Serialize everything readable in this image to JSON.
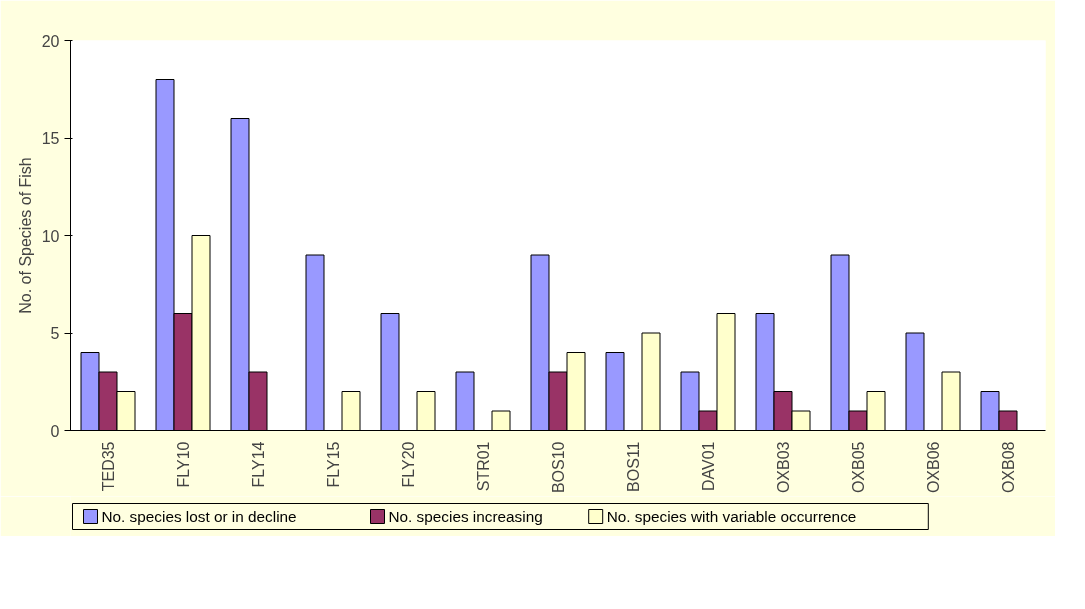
{
  "chart_data": {
    "type": "bar",
    "ylabel": "No. of Species of Fish",
    "categories": [
      "TED35",
      "FLY10",
      "FLY14",
      "FLY15",
      "FLY20",
      "STR01",
      "BOS10",
      "BOS11",
      "DAV01",
      "OXB03",
      "OXB05",
      "OXB06",
      "OXB08"
    ],
    "series": [
      {
        "name": "No. species lost or in decline",
        "color": "#9999ff",
        "values": [
          4,
          18,
          16,
          9,
          6,
          3,
          9,
          4,
          3,
          6,
          9,
          5,
          2
        ]
      },
      {
        "name": "No. species increasing",
        "color": "#993366",
        "values": [
          3,
          6,
          3,
          null,
          null,
          null,
          3,
          null,
          1,
          2,
          1,
          null,
          1
        ]
      },
      {
        "name": "No. species with variable occurrence",
        "color": "#ffffcc",
        "values": [
          2,
          10,
          null,
          2,
          2,
          1,
          4,
          5,
          6,
          1,
          2,
          3,
          null
        ]
      }
    ],
    "ylim": [
      0,
      20
    ],
    "yticks": [
      0,
      5,
      10,
      15,
      20
    ],
    "grid": false,
    "legend": "bottom"
  }
}
